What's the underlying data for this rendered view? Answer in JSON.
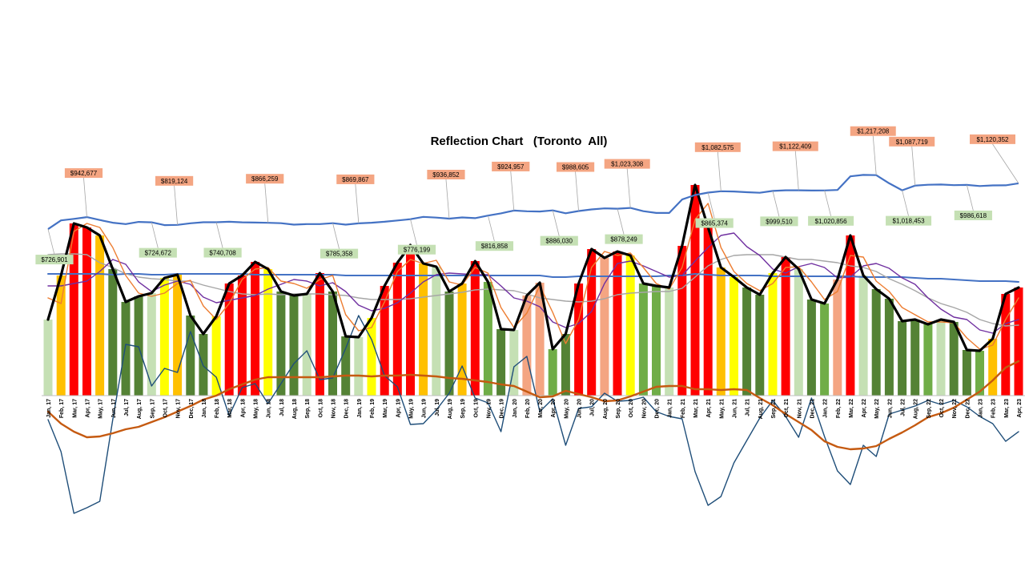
{
  "chart_data": {
    "type": "bar",
    "title": "Reflection Chart   (Toronto  All)",
    "categories": [
      "Jan, 17",
      "Feb, 17",
      "Mar, 17",
      "Apr, 17",
      "May, 17",
      "Jun, 17",
      "Jul, 17",
      "Aug, 17",
      "Sep, 17",
      "Oct, 17",
      "Nov, 17",
      "Dec, 17",
      "Jan, 18",
      "Feb, 18",
      "Mar, 18",
      "Apr, 18",
      "May, 18",
      "Jun, 18",
      "Jul, 18",
      "Aug, 18",
      "Sep, 18",
      "Oct, 18",
      "Nov, 18",
      "Dec, 18",
      "Jan, 19",
      "Feb, 19",
      "Mar, 19",
      "Apr, 19",
      "May, 19",
      "Jun, 19",
      "Jul, 19",
      "Aug, 19",
      "Sep, 19",
      "Oct, 19",
      "Nov, 19",
      "Dec, 19",
      "Jan, 20",
      "Feb, 20",
      "Mar, 20",
      "Apr, 20",
      "May, 20",
      "Jun, 20",
      "Jul, 20",
      "Aug, 20",
      "Sep, 20",
      "Oct, 20",
      "Nov, 20",
      "Dec, 20",
      "Jan, 21",
      "Feb, 21",
      "Mar, 21",
      "Apr, 21",
      "May, 21",
      "Jun, 21",
      "Jul, 21",
      "Aug, 21",
      "Sep, 21",
      "Oct, 21",
      "Nov, 21",
      "Dec, 21",
      "Jan, 22",
      "Feb, 22",
      "Mar, 22",
      "Apr, 22",
      "May, 22",
      "Jun, 22",
      "Jul, 22",
      "Aug, 22",
      "Sep, 22",
      "Oct, 22",
      "Nov, 22",
      "Dec, 22",
      "Jan, 23",
      "Feb, 23",
      "Mar, 23",
      "Apr, 23"
    ],
    "bar_values": [
      95,
      150,
      215,
      210,
      200,
      158,
      117,
      124,
      128,
      147,
      151,
      100,
      77,
      99,
      140,
      150,
      167,
      158,
      130,
      125,
      127,
      153,
      130,
      74,
      73,
      97,
      137,
      166,
      188,
      165,
      161,
      130,
      140,
      168,
      142,
      83,
      82,
      125,
      141,
      58,
      77,
      140,
      183,
      172,
      180,
      175,
      140,
      137,
      135,
      187,
      263,
      210,
      160,
      148,
      135,
      126,
      153,
      173,
      158,
      120,
      115,
      145,
      200,
      150,
      133,
      121,
      93,
      95,
      89,
      95,
      92,
      57,
      56,
      71,
      127,
      135
    ],
    "bar_colors": [
      "#c5e0b4",
      "#ffc000",
      "#ff0000",
      "#ff0000",
      "#ffc000",
      "#548235",
      "#548235",
      "#548235",
      "#c5e0b4",
      "#ffff00",
      "#ffc000",
      "#548235",
      "#548235",
      "#ffff00",
      "#ff0000",
      "#ff0000",
      "#ff0000",
      "#ffff00",
      "#548235",
      "#548235",
      "#c5e0b4",
      "#ff0000",
      "#548235",
      "#548235",
      "#c5e0b4",
      "#ffff00",
      "#ff0000",
      "#ff0000",
      "#ff0000",
      "#ffc000",
      "#c5e0b4",
      "#548235",
      "#ffc000",
      "#ff0000",
      "#70ad47",
      "#548235",
      "#c5e0b4",
      "#f4a582",
      "#f4a582",
      "#70ad47",
      "#548235",
      "#ff0000",
      "#ff0000",
      "#f4a582",
      "#ff0000",
      "#ffff00",
      "#70ad47",
      "#70ad47",
      "#c5e0b4",
      "#ff0000",
      "#ff0000",
      "#ff0000",
      "#ffc000",
      "#ffff00",
      "#548235",
      "#548235",
      "#ffff00",
      "#ff0000",
      "#c5e0b4",
      "#548235",
      "#70ad47",
      "#f4a582",
      "#ff0000",
      "#c5e0b4",
      "#548235",
      "#548235",
      "#548235",
      "#548235",
      "#70ad47",
      "#c5e0b4",
      "#548235",
      "#548235",
      "#70ad47",
      "#ffc000",
      "#ff0000",
      "#ff0000"
    ],
    "series": [
      {
        "color": "#000000",
        "values": [
          95,
          150,
          215,
          210,
          200,
          158,
          117,
          124,
          128,
          147,
          151,
          100,
          77,
          99,
          140,
          150,
          167,
          158,
          130,
          125,
          127,
          153,
          130,
          74,
          73,
          97,
          137,
          166,
          188,
          165,
          161,
          130,
          140,
          168,
          142,
          83,
          82,
          125,
          141,
          58,
          77,
          140,
          183,
          172,
          180,
          175,
          140,
          137,
          135,
          187,
          263,
          210,
          160,
          148,
          135,
          126,
          153,
          173,
          158,
          120,
          115,
          145,
          200,
          150,
          133,
          121,
          93,
          95,
          89,
          95,
          92,
          57,
          56,
          71,
          127,
          135
        ]
      },
      {
        "color": "#ed7d31",
        "values": [
          122,
          115,
          205,
          215,
          210,
          185,
          150,
          128,
          124,
          128,
          140,
          144,
          112,
          95,
          115,
          145,
          158,
          160,
          143,
          140,
          134,
          145,
          150,
          101,
          81,
          85,
          117,
          155,
          170,
          165,
          169,
          142,
          138,
          160,
          153,
          110,
          85,
          103,
          137,
          104,
          65,
          95,
          160,
          180,
          175,
          178,
          160,
          140,
          133,
          160,
          220,
          240,
          185,
          155,
          140,
          131,
          140,
          160,
          161,
          142,
          120,
          130,
          175,
          173,
          143,
          130,
          110,
          101,
          92,
          92,
          91,
          72,
          58,
          63,
          95,
          122
        ]
      },
      {
        "color": "#7030a0",
        "values": [
          137,
          137,
          140,
          143,
          155,
          170,
          164,
          142,
          130,
          138,
          143,
          139,
          123,
          116,
          119,
          122,
          125,
          133,
          139,
          145,
          143,
          137,
          141,
          130,
          113,
          106,
          109,
          116,
          128,
          142,
          151,
          153,
          152,
          151,
          151,
          137,
          122,
          118,
          111,
          92,
          85,
          90,
          105,
          140,
          165,
          168,
          162,
          155,
          148,
          150,
          168,
          185,
          200,
          203,
          186,
          175,
          158,
          153,
          161,
          165,
          160,
          147,
          148,
          162,
          165,
          159,
          147,
          139,
          122,
          108,
          98,
          95,
          82,
          78,
          90,
          95
        ]
      },
      {
        "color": "#a6a6a6",
        "values": [
          176,
          177,
          177,
          176,
          166,
          160,
          152,
          148,
          146,
          145,
          143,
          143,
          138,
          134,
          130,
          127,
          126,
          127,
          126,
          127,
          127,
          127,
          126,
          125,
          122,
          120,
          120,
          120,
          121,
          123,
          125,
          127,
          129,
          132,
          133,
          132,
          131,
          127,
          122,
          120,
          118,
          117,
          118,
          121,
          126,
          128,
          129,
          130,
          130,
          134,
          148,
          162,
          170,
          175,
          176,
          176,
          176,
          173,
          170,
          170,
          168,
          166,
          162,
          160,
          155,
          146,
          139,
          131,
          122,
          115,
          110,
          104,
          95,
          90,
          87,
          88
        ]
      },
      {
        "color": "#4472c4",
        "values": [
          152,
          152,
          152,
          152,
          152,
          151,
          152,
          152,
          151,
          151,
          152,
          152,
          152,
          152,
          152,
          152,
          151,
          151,
          151,
          151,
          151,
          151,
          151,
          150,
          150,
          150,
          150,
          150,
          150,
          150,
          150,
          150,
          150,
          150,
          150,
          150,
          150,
          150,
          150,
          148,
          148,
          149,
          149,
          149,
          149,
          149,
          149,
          149,
          150,
          150,
          152,
          151,
          150,
          150,
          150,
          150,
          149,
          149,
          149,
          149,
          149,
          149,
          149,
          148,
          148,
          148,
          148,
          147,
          146,
          146,
          145,
          144,
          143,
          143,
          143,
          142
        ]
      },
      {
        "color": "#c55a11",
        "values": [
          -20,
          -35,
          -45,
          -52,
          -51,
          -47,
          -42,
          -39,
          -33,
          -27,
          -20,
          -13,
          -5,
          0,
          8,
          14,
          20,
          23,
          23,
          23,
          23,
          23,
          24,
          25,
          25,
          24,
          25,
          25,
          26,
          25,
          24,
          22,
          21,
          19,
          17,
          14,
          12,
          5,
          -2,
          -1,
          6,
          2,
          -2,
          -7,
          -6,
          -1,
          5,
          11,
          12,
          12,
          8,
          8,
          7,
          8,
          7,
          -3,
          -12,
          -23,
          -33,
          -43,
          -57,
          -64,
          -67,
          -66,
          -63,
          -54,
          -46,
          -37,
          -27,
          -22,
          -15,
          -5,
          5,
          19,
          35,
          43
        ]
      },
      {
        "color": "#1f4e79",
        "values": [
          -30,
          -70,
          -147,
          -140,
          -132,
          -30,
          64,
          61,
          12,
          34,
          29,
          80,
          37,
          23,
          -25,
          10,
          15,
          -10,
          15,
          40,
          56,
          20,
          22,
          59,
          100,
          70,
          25,
          11,
          -36,
          -35,
          -18,
          3,
          37,
          -3,
          -9,
          -45,
          36,
          49,
          -20,
          -4,
          -62,
          -16,
          -14,
          3,
          -7,
          -6,
          -2,
          -20,
          -26,
          -29,
          -95,
          -137,
          -126,
          -84,
          -56,
          -28,
          -6,
          -26,
          -52,
          -3,
          -51,
          -94,
          -111,
          -62,
          -76,
          -23,
          -18,
          -13,
          -6,
          -11,
          -6,
          -14,
          -26,
          -35,
          -57,
          -45
        ]
      }
    ],
    "price_line": {
      "color": "#4472c4",
      "values": [
        726901,
        802000,
        815000,
        830000,
        805000,
        782000,
        770000,
        789000,
        785000,
        761000,
        763000,
        777000,
        786000,
        786000,
        790000,
        785000,
        783000,
        781000,
        778000,
        765000,
        770000,
        770000,
        778000,
        765000,
        776199,
        782000,
        790000,
        801000,
        812000,
        832000,
        826000,
        816858,
        827000,
        821000,
        843000,
        862000,
        886030,
        880000,
        878249,
        888000,
        863000,
        882000,
        896000,
        905000,
        902000,
        909000,
        881000,
        865374,
        866000,
        981000,
        1020000,
        1040000,
        1052000,
        1050000,
        1044000,
        1039000,
        1055000,
        1060000,
        1060000,
        1058000,
        1059000,
        1063000,
        1180000,
        1192000,
        1190000,
        1120000,
        1060000,
        1100000,
        1108000,
        1110000,
        1104000,
        1106000,
        1097000,
        1102000,
        1103000,
        1120352
      ]
    },
    "price_labels": [
      {
        "index": 0,
        "text": "$726,901",
        "kind": "low"
      },
      {
        "index": 3,
        "text": "$942,677",
        "kind": "high"
      },
      {
        "index": 8,
        "text": "$724,672",
        "kind": "low"
      },
      {
        "index": 10,
        "text": "$819,124",
        "kind": "high"
      },
      {
        "index": 13,
        "text": "$740,708",
        "kind": "low"
      },
      {
        "index": 17,
        "text": "$866,259",
        "kind": "high"
      },
      {
        "index": 22,
        "text": "$785,358",
        "kind": "low"
      },
      {
        "index": 24,
        "text": "$869,867",
        "kind": "high"
      },
      {
        "index": 28,
        "text": "$776,199",
        "kind": "low"
      },
      {
        "index": 31,
        "text": "$936,852",
        "kind": "high"
      },
      {
        "index": 34,
        "text": "$816,858",
        "kind": "low"
      },
      {
        "index": 36,
        "text": "$924,957",
        "kind": "high"
      },
      {
        "index": 39,
        "text": "$886,030",
        "kind": "low"
      },
      {
        "index": 41,
        "text": "$988,605",
        "kind": "high"
      },
      {
        "index": 44,
        "text": "$878,249",
        "kind": "low"
      },
      {
        "index": 45,
        "text": "$1,023,308",
        "kind": "high"
      },
      {
        "index": 51,
        "text": "$865,374",
        "kind": "low"
      },
      {
        "index": 52,
        "text": "$1,082,575",
        "kind": "high"
      },
      {
        "index": 56,
        "text": "$999,510",
        "kind": "low"
      },
      {
        "index": 58,
        "text": "$1,122,409",
        "kind": "high"
      },
      {
        "index": 60,
        "text": "$1,020,856",
        "kind": "low"
      },
      {
        "index": 64,
        "text": "$1,217,208",
        "kind": "high"
      },
      {
        "index": 66,
        "text": "$1,018,453",
        "kind": "low"
      },
      {
        "index": 67,
        "text": "$1,087,719",
        "kind": "high"
      },
      {
        "index": 71,
        "text": "$986,618",
        "kind": "low"
      },
      {
        "index": 75,
        "text": "$1,120,352",
        "kind": "high"
      }
    ],
    "label_colors": {
      "high": "#f4a582",
      "low": "#c5e0b4"
    },
    "xlabel": "",
    "ylabel": "",
    "grid": false,
    "legend": "none"
  }
}
